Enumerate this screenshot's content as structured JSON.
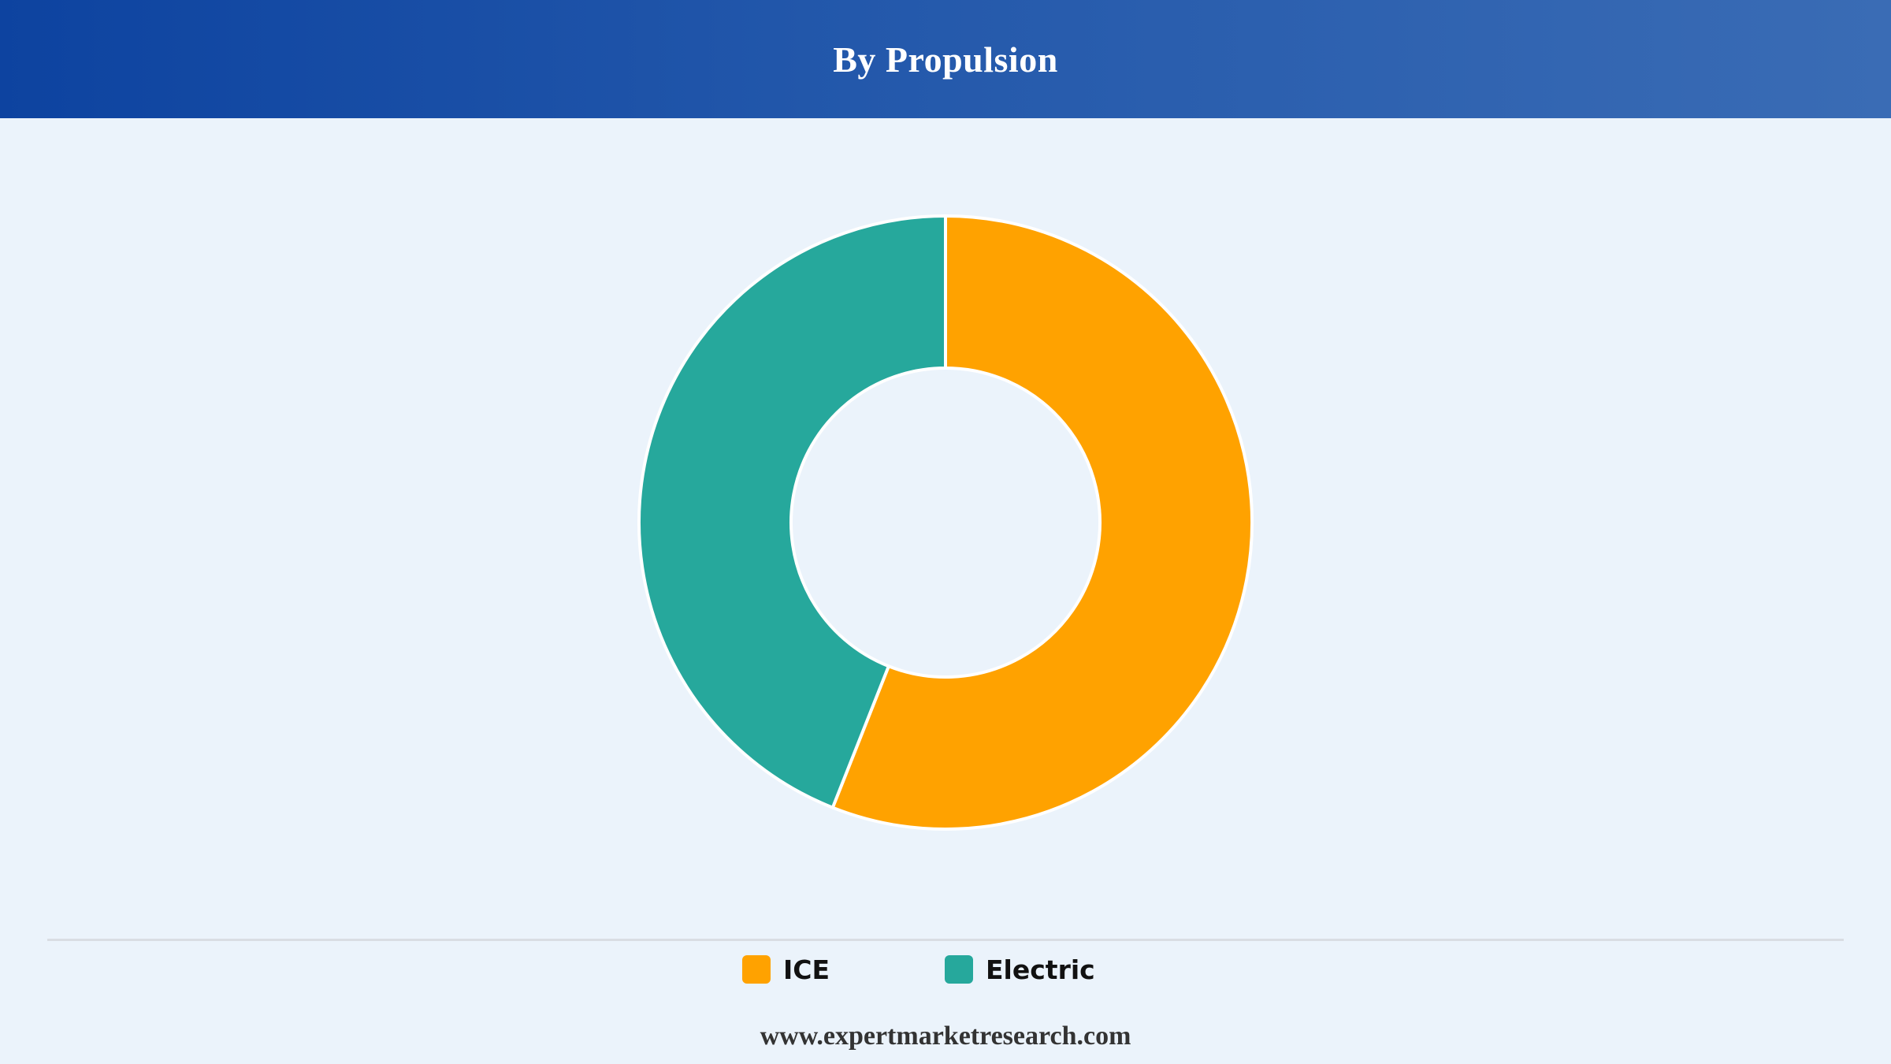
{
  "header": {
    "title": "By Propulsion"
  },
  "chart_data": {
    "type": "pie",
    "variant": "donut",
    "title": "By Propulsion",
    "categories": [
      "ICE",
      "Electric"
    ],
    "values": [
      56,
      44
    ],
    "unit": "%",
    "colors": [
      "#ffa200",
      "#26a89c"
    ],
    "legend_position": "bottom"
  },
  "legend": {
    "items": [
      {
        "label": "ICE",
        "color": "#ffa200"
      },
      {
        "label": "Electric",
        "color": "#26a89c"
      }
    ]
  },
  "footer": {
    "source": "www.expertmarketresearch.com"
  }
}
